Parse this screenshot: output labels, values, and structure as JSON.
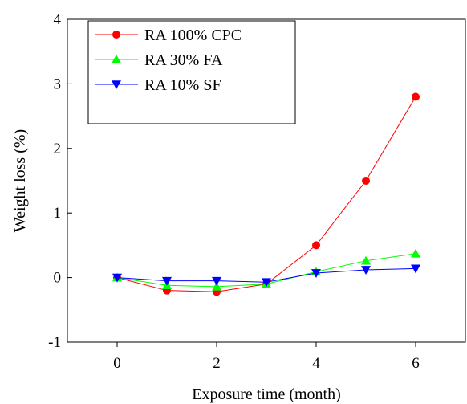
{
  "chart_data": {
    "type": "line",
    "title": "",
    "xlabel": "Exposure time (month)",
    "ylabel": "Weight loss (%)",
    "xlim": [
      -1,
      7
    ],
    "ylim": [
      -1,
      4
    ],
    "xticks": [
      0,
      2,
      4,
      6
    ],
    "xtick_labels": [
      "0",
      "2",
      "4",
      "6"
    ],
    "yticks": [
      -1,
      0,
      1,
      2,
      3,
      4
    ],
    "ytick_labels": [
      "-1",
      "0",
      "1",
      "2",
      "3",
      "4"
    ],
    "legend_position": "top-left",
    "grid": false,
    "x": [
      0,
      1,
      2,
      3,
      4,
      5,
      6
    ],
    "series": [
      {
        "name": "RA 100% CPC",
        "color": "#ff0000",
        "marker": "circle",
        "values": [
          0.0,
          -0.2,
          -0.22,
          -0.1,
          0.5,
          1.5,
          2.8
        ]
      },
      {
        "name": "RA 30% FA",
        "color": "#00ff00",
        "marker": "triangle-up",
        "values": [
          0.0,
          -0.12,
          -0.14,
          -0.1,
          0.09,
          0.26,
          0.37
        ]
      },
      {
        "name": "RA 10% SF",
        "color": "#0000ff",
        "marker": "triangle-down",
        "values": [
          0.0,
          -0.05,
          -0.05,
          -0.07,
          0.07,
          0.12,
          0.14
        ]
      }
    ]
  }
}
